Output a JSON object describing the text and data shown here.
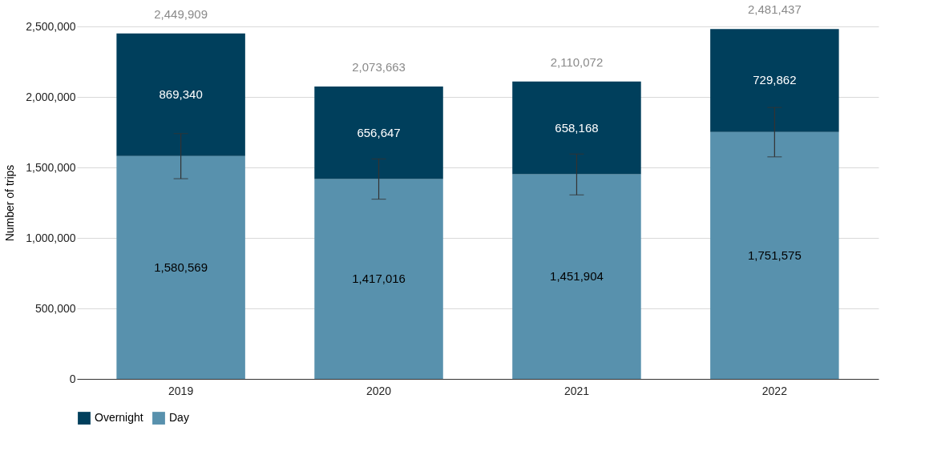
{
  "chart_data": {
    "type": "bar",
    "stacked": true,
    "ylabel": "Number of trips",
    "categories": [
      "2019",
      "2020",
      "2021",
      "2022"
    ],
    "series": [
      {
        "name": "Day",
        "color": "#5891ad",
        "values": [
          1580569,
          1417016,
          1451904,
          1751575
        ],
        "value_labels": [
          "1,580,569",
          "1,417,016",
          "1,451,904",
          "1,751,575"
        ],
        "errors": [
          [
            1420000,
            1740000
          ],
          [
            1275000,
            1560000
          ],
          [
            1305000,
            1595000
          ],
          [
            1575000,
            1925000
          ]
        ]
      },
      {
        "name": "Overnight",
        "color": "#003f5c",
        "values": [
          869340,
          656647,
          658168,
          729862
        ],
        "value_labels": [
          "869,340",
          "656,647",
          "658,168",
          "729,862"
        ]
      }
    ],
    "totals": [
      "2,449,909",
      "2,073,663",
      "2,110,072",
      "2,481,437"
    ],
    "ylim": [
      0,
      2500000
    ],
    "yticks": [
      0,
      {
        "value": 500000,
        "label": "500,000"
      },
      {
        "value": 1000000,
        "label": "1,000,000"
      },
      {
        "value": 1500000,
        "label": "1,500,000"
      },
      {
        "value": 2000000,
        "label": "2,000,000"
      },
      {
        "value": 2500000,
        "label": "2,500,000"
      }
    ],
    "grid": "y",
    "legend": "bottom"
  }
}
